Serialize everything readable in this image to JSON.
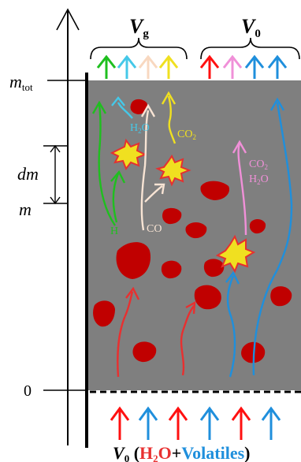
{
  "labels": {
    "vg_main": "V",
    "vg_sub": "g",
    "v0_main": "V",
    "v0_sub": "0",
    "mtot_main": "m",
    "mtot_sub": "tot",
    "dm": "dm",
    "m": "m",
    "zero": "0",
    "h2": "H",
    "h2o_top": "H",
    "h2o_top_sub": "2",
    "h2o_top_end": "O",
    "co": "CO",
    "co2_left": "CO",
    "co2_left_sub": "2",
    "co2_right": "CO",
    "co2_right_sub": "2",
    "h2o_right": "H",
    "h2o_right_sub": "2",
    "h2o_right_end": "O",
    "bottom_v": "V",
    "bottom_v_sub": "0",
    "bottom_open": " (",
    "bottom_h": "H",
    "bottom_h_sub": "2",
    "bottom_o": "O",
    "bottom_plus": "+",
    "bottom_volatiles": "Volatiles",
    "bottom_close": ")"
  },
  "colors": {
    "bed": "#7f7f7f",
    "particle": "#c00000",
    "water": "#1f8fdc",
    "volatiles_blue": "#1f8fdc",
    "hydrogen": "#1fbf1f",
    "water_vapour": "#45c8e8",
    "co": "#f8d8c0",
    "co2": "#f0e020",
    "co2_h2o_right": "#f090d8",
    "burst_fill": "#f0e020",
    "burst_stroke": "#e53030",
    "axis": "#000000"
  }
}
